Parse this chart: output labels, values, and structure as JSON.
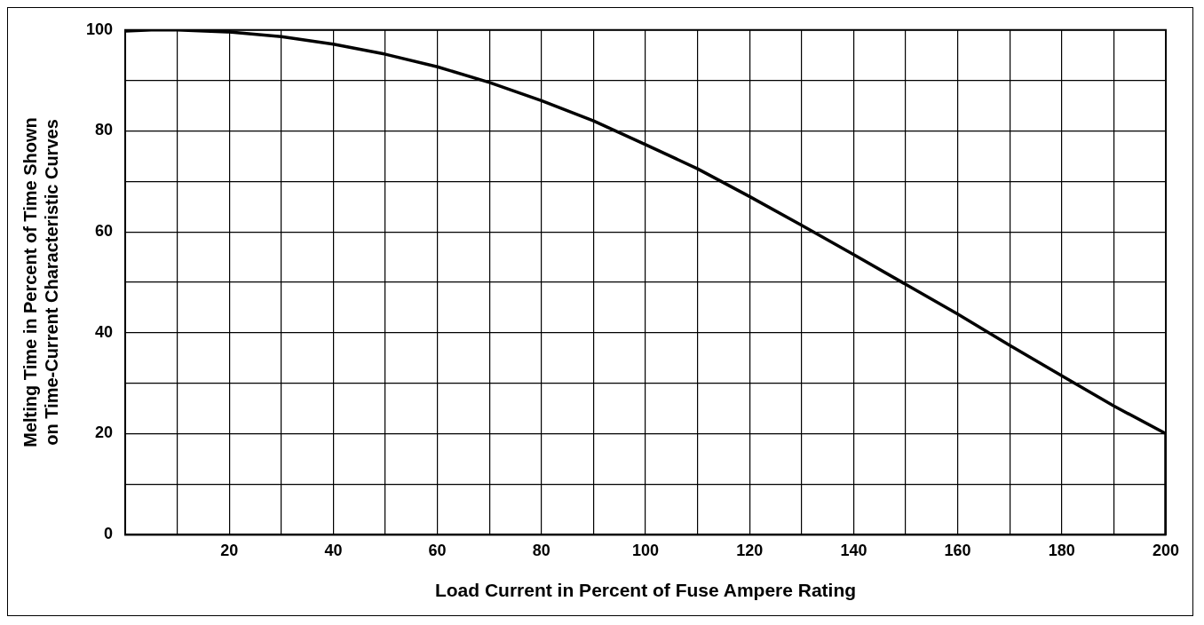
{
  "chart_data": {
    "type": "line",
    "xlabel": "Load Current in Percent of Fuse Ampere Rating",
    "ylabel": "Melting Time in Percent of Time Shown\non Time-Current Characteristic Curves",
    "x": [
      0,
      5,
      10,
      20,
      30,
      40,
      50,
      60,
      70,
      80,
      90,
      100,
      110,
      120,
      130,
      140,
      150,
      160,
      170,
      180,
      190,
      200,
      200
    ],
    "series": [
      {
        "color": "#000000",
        "values": [
          99.8,
          100,
          100,
          99.6,
          98.7,
          97.2,
          95.2,
          92.7,
          89.6,
          86,
          82,
          77.3,
          72.5,
          67,
          61.3,
          55.5,
          49.6,
          43.7,
          37.5,
          31.5,
          25.5,
          20,
          0
        ]
      }
    ],
    "xlim": [
      0,
      200
    ],
    "ylim": [
      0,
      100
    ],
    "xticks": [
      {
        "value": 0,
        "label": null
      },
      {
        "value": 10,
        "label": null
      },
      20,
      {
        "value": 30,
        "label": null
      },
      40,
      {
        "value": 50,
        "label": null
      },
      60,
      {
        "value": 70,
        "label": null
      },
      80,
      {
        "value": 90,
        "label": null
      },
      100,
      {
        "value": 110,
        "label": null
      },
      120,
      {
        "value": 130,
        "label": null
      },
      140,
      {
        "value": 150,
        "label": null
      },
      160,
      {
        "value": 170,
        "label": null
      },
      180,
      {
        "value": 190,
        "label": null
      },
      200
    ],
    "yticks": [
      0,
      {
        "value": 10,
        "label": null
      },
      20,
      {
        "value": 30,
        "label": null
      },
      40,
      {
        "value": 50,
        "label": null
      },
      60,
      {
        "value": 70,
        "label": null
      },
      80,
      {
        "value": 90,
        "label": null
      },
      100
    ],
    "grid": true,
    "legend": false,
    "marker": "none",
    "line_style": "solid"
  }
}
